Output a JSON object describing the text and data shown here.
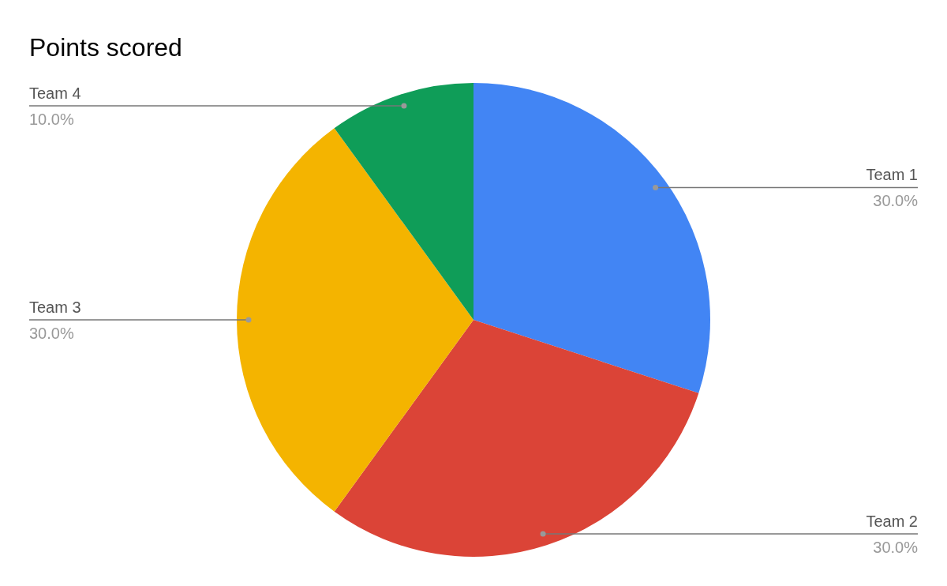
{
  "chart_data": {
    "type": "pie",
    "title": "Points scored",
    "categories": [
      "Team 1",
      "Team 2",
      "Team 3",
      "Team 4"
    ],
    "values": [
      30,
      30,
      30,
      10
    ],
    "colors": [
      "#4285f4",
      "#db4437",
      "#f4b400",
      "#0f9d58"
    ],
    "value_labels": [
      "30.0%",
      "30.0%",
      "30.0%",
      "10.0%"
    ],
    "legend": false
  }
}
